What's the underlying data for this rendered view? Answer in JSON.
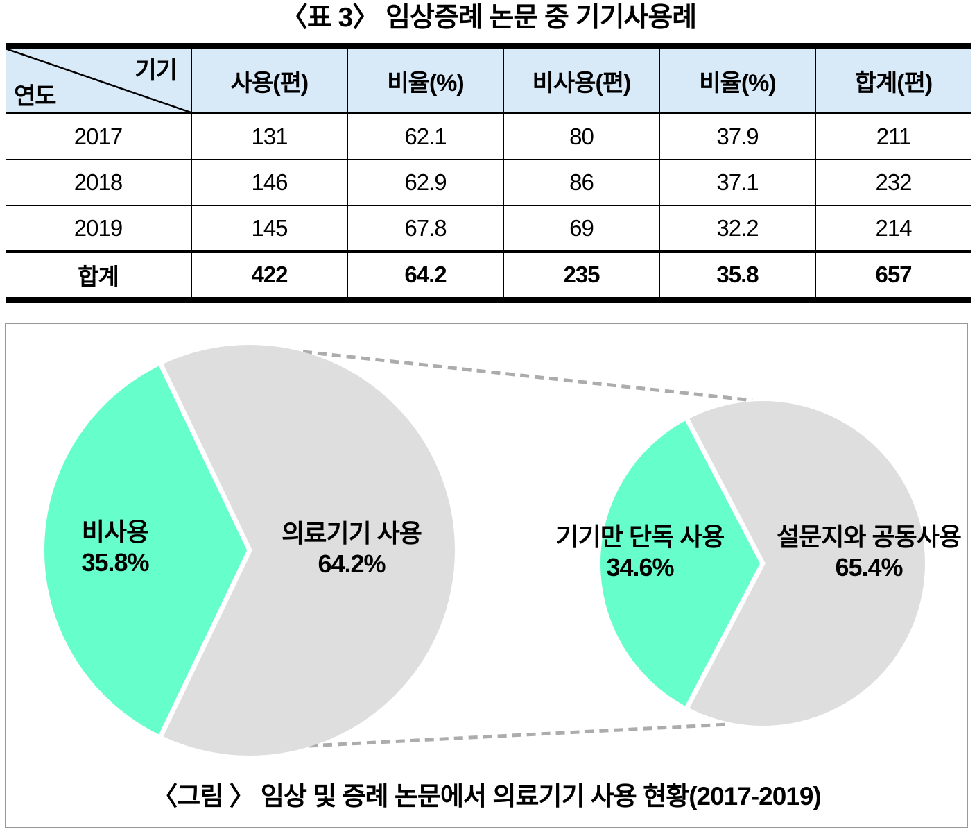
{
  "table": {
    "title": "〈표 3〉 임상증례 논문 중 기기사용례",
    "header_bg": "#D8E9F8",
    "corner": {
      "top_right": "기기",
      "bottom_left": "연도"
    },
    "columns": [
      "사용(편)",
      "비율(%)",
      "비사용(편)",
      "비율(%)",
      "합계(편)"
    ],
    "rows": [
      {
        "label": "2017",
        "values": [
          "131",
          "62.1",
          "80",
          "37.9",
          "211"
        ]
      },
      {
        "label": "2018",
        "values": [
          "146",
          "62.9",
          "86",
          "37.1",
          "232"
        ]
      },
      {
        "label": "2019",
        "values": [
          "145",
          "67.8",
          "69",
          "32.2",
          "214"
        ]
      },
      {
        "label": "합계",
        "values": [
          "422",
          "64.2",
          "235",
          "35.8",
          "657"
        ]
      }
    ]
  },
  "figure": {
    "caption": "〈그림 〉 임상 및 증례 논문에서 의료기기 사용 현황(2017-2019)",
    "connector_color": "#ACACAC"
  },
  "chart_data": [
    {
      "type": "pie",
      "name": "left-primary-pie",
      "slices": [
        {
          "label": "비사용",
          "value": 35.8,
          "display": "35.8%",
          "color": "#66FFCC"
        },
        {
          "label": "의료기기 사용",
          "value": 64.2,
          "display": "64.2%",
          "color": "#DEDEDE"
        }
      ],
      "highlight_centered_at_degrees": 180,
      "separator_color": "#FFFFFF"
    },
    {
      "type": "pie",
      "name": "right-secondary-pie",
      "slices": [
        {
          "label": "기기만 단독 사용",
          "value": 34.6,
          "display": "34.6%",
          "color": "#66FFCC"
        },
        {
          "label": "설문지와 공동사용",
          "value": 65.4,
          "display": "65.4%",
          "color": "#DEDEDE"
        }
      ],
      "highlight_centered_at_degrees": 180,
      "separator_color": "#FFFFFF"
    }
  ]
}
